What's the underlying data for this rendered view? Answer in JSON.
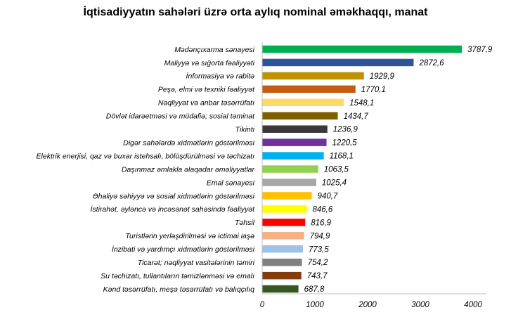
{
  "chart_data": {
    "type": "bar",
    "orientation": "horizontal",
    "title": "İqtisadiyyatın sahələri üzrə orta aylıq nominal əməkhaqqı, manat",
    "xlabel": "",
    "ylabel": "",
    "xlim": [
      0,
      4250
    ],
    "xticks": [
      0,
      1000,
      2000,
      3000,
      4000
    ],
    "grid": false,
    "legend": "none",
    "categories": [
      "Mədənçıxarma sənayesi",
      "Maliyyə və sığorta fəaliyyəti",
      "İnformasiya və rabitə",
      "Peşə, elmi və texniki fəaliyyət",
      "Nəqliyyat və anbar təsərrüfatı",
      "Dövlət idarəetməsi və müdafiə; sosial təminat",
      "Tikinti",
      "Digər sahələrdə xidmətlərin göstərilməsi",
      "Elektrik enerjisi, qaz və buxar istehsalı, bölüşdürülməsi və təchizatı",
      "Daşınmaz əmlakla əlaqədar əməliyyatlar",
      "Emal sənayesi",
      "Əhaliyə səhiyyə və sosial xidmətlərin göstərilməsi",
      "İstirahət, əyləncə və incəsənət sahəsində fəaliyyət",
      "Təhsil",
      "Turistlərin yerləşdirilməsi və ictimai iaşə",
      "İnzibati və yardımçı xidmətlərin göstərilməsi",
      "Ticarət; nəqliyyat vasitələrinin təmiri",
      "Su təchizatı, tullantıların təmizlənməsi və emalı",
      "Kənd təsərrüfatı, meşə təsərrüfatı və balıqçılıq"
    ],
    "values": [
      3787.9,
      2872.6,
      1929.9,
      1770.1,
      1548.1,
      1434.7,
      1236.9,
      1220.5,
      1168.1,
      1063.5,
      1025.4,
      940.7,
      846.6,
      816.9,
      794.9,
      773.5,
      754.2,
      743.7,
      687.8
    ],
    "value_labels": [
      "3787,9",
      "2872,6",
      "1929,9",
      "1770,1",
      "1548,1",
      "1434,7",
      "1236,9",
      "1220,5",
      "1168,1",
      "1063,5",
      "1025,4",
      "940,7",
      "846,6",
      "816,9",
      "794,9",
      "773,5",
      "754,2",
      "743,7",
      "687,8"
    ],
    "colors": [
      "#00b050",
      "#2f5597",
      "#bf9000",
      "#c55a11",
      "#ffd966",
      "#7f6000",
      "#3a3838",
      "#7030a0",
      "#00b0f0",
      "#92d050",
      "#a6a6a6",
      "#ffc000",
      "#ffff00",
      "#ff0000",
      "#f4b183",
      "#9dc3e6",
      "#808080",
      "#843c0c",
      "#375623"
    ]
  }
}
